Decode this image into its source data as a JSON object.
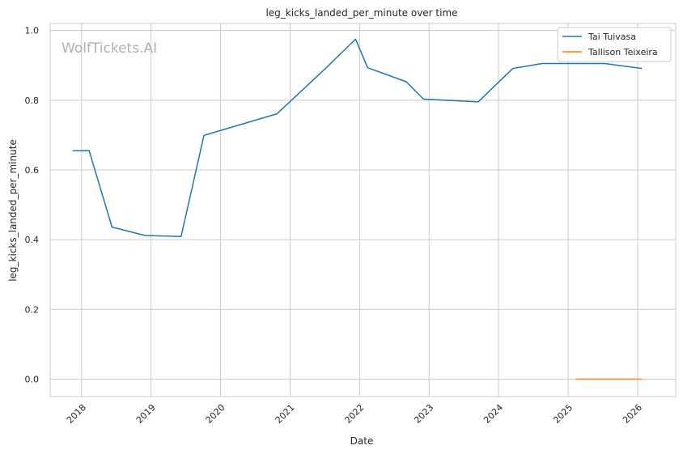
{
  "chart_data": {
    "type": "line",
    "title": "leg_kicks_landed_per_minute over time",
    "xlabel": "Date",
    "ylabel": "leg_kicks_landed_per_minute",
    "watermark": "WolfTickets.AI",
    "xlim": [
      "2017-07-20",
      "2026-07-20"
    ],
    "ylim": [
      -0.05,
      1.02
    ],
    "x_ticks": [
      "2018",
      "2019",
      "2020",
      "2021",
      "2022",
      "2023",
      "2024",
      "2025",
      "2026"
    ],
    "y_ticks": [
      0.0,
      0.2,
      0.4,
      0.6,
      0.8,
      1.0
    ],
    "grid": true,
    "legend_position": "top-right",
    "series": [
      {
        "name": "Tai Tuivasa",
        "color": "#1f77b4",
        "points": [
          {
            "x": "2017-11-15",
            "y": 0.655
          },
          {
            "x": "2018-02-10",
            "y": 0.655
          },
          {
            "x": "2018-06-10",
            "y": 0.436
          },
          {
            "x": "2018-12-01",
            "y": 0.412
          },
          {
            "x": "2019-06-08",
            "y": 0.409
          },
          {
            "x": "2019-10-06",
            "y": 0.699
          },
          {
            "x": "2020-10-24",
            "y": 0.761
          },
          {
            "x": "2021-07-10",
            "y": 0.893
          },
          {
            "x": "2021-12-11",
            "y": 0.975
          },
          {
            "x": "2022-02-12",
            "y": 0.893
          },
          {
            "x": "2022-09-03",
            "y": 0.853
          },
          {
            "x": "2022-12-03",
            "y": 0.803
          },
          {
            "x": "2023-09-16",
            "y": 0.795
          },
          {
            "x": "2024-03-16",
            "y": 0.891
          },
          {
            "x": "2024-08-17",
            "y": 0.905
          },
          {
            "x": "2025-07-12",
            "y": 0.905
          },
          {
            "x": "2026-01-24",
            "y": 0.891
          }
        ]
      },
      {
        "name": "Tallison Teixeira",
        "color": "#ff7f0e",
        "points": [
          {
            "x": "2025-02-08",
            "y": 0.0
          },
          {
            "x": "2026-01-24",
            "y": 0.0
          }
        ]
      }
    ]
  }
}
